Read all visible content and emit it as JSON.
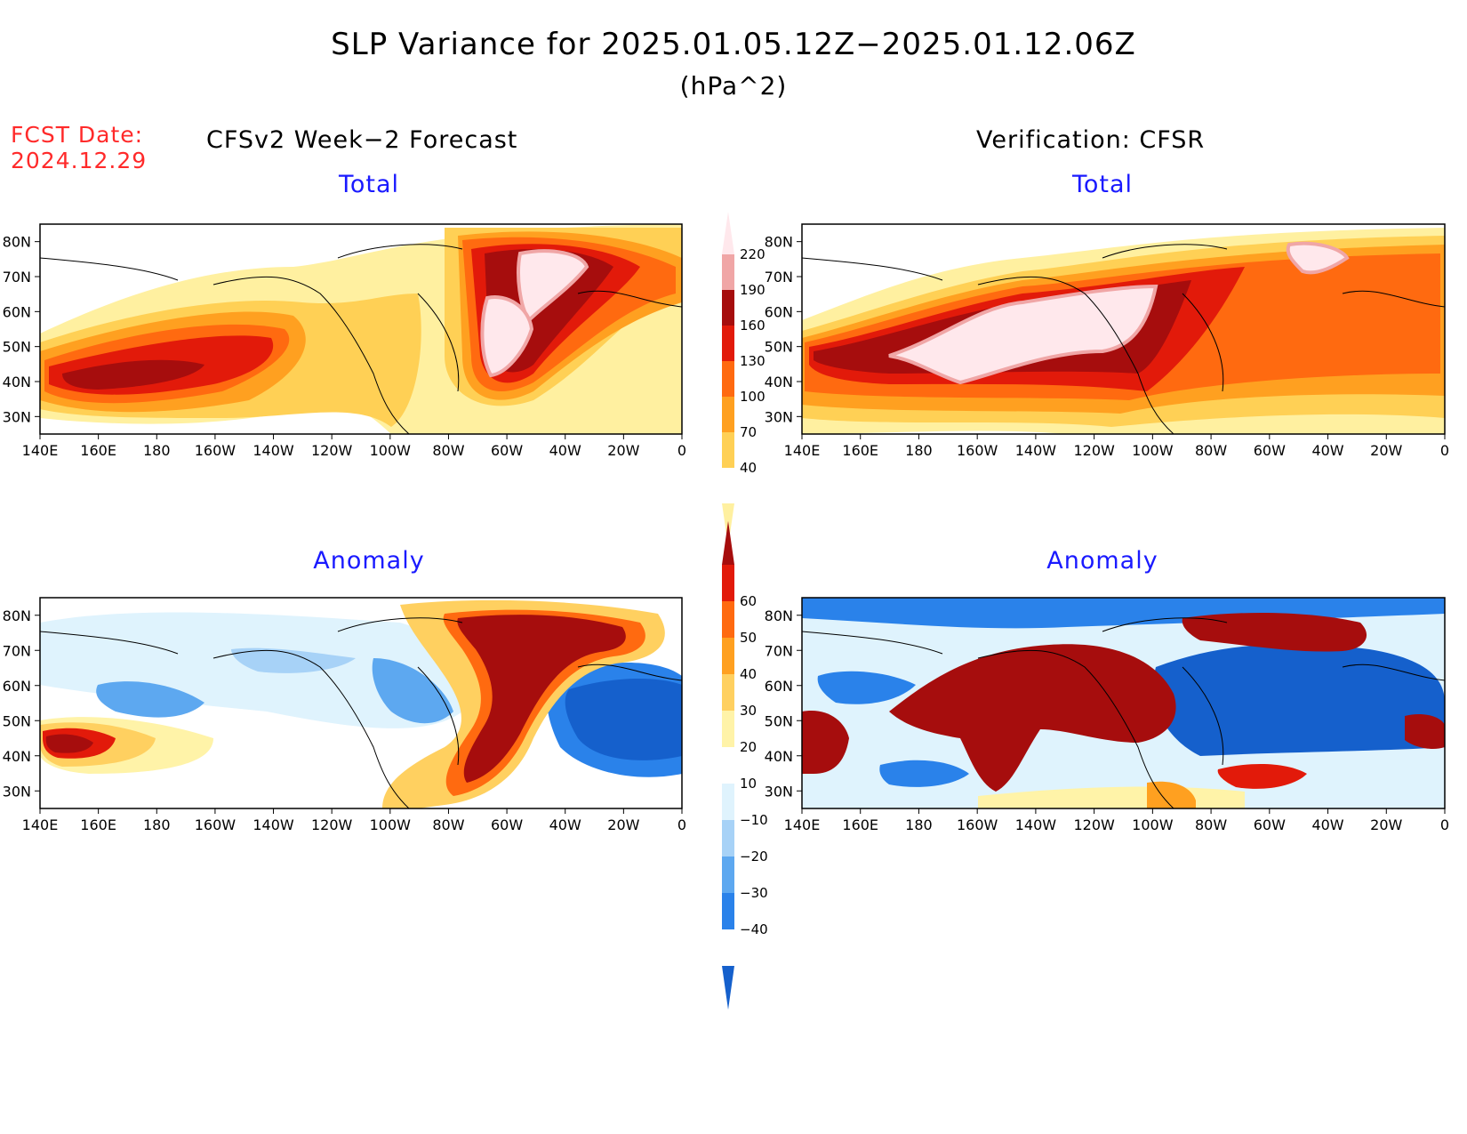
{
  "header": {
    "title": "SLP Variance for 2025.01.05.12Z−2025.01.12.06Z",
    "units": "(hPa^2)",
    "fcst_label": "FCST Date:",
    "fcst_date": "2024.12.29",
    "left_column": "CFSv2 Week−2 Forecast",
    "right_column": "Verification: CFSR"
  },
  "panels": {
    "top_left": {
      "title": "Total"
    },
    "top_right": {
      "title": "Total"
    },
    "bottom_left": {
      "title": "Anomaly"
    },
    "bottom_right": {
      "title": "Anomaly"
    }
  },
  "axes": {
    "lat_labels": [
      "80N",
      "70N",
      "60N",
      "50N",
      "40N",
      "30N"
    ],
    "lon_labels": [
      "140E",
      "160E",
      "180",
      "160W",
      "140W",
      "120W",
      "100W",
      "80W",
      "60W",
      "40W",
      "20W",
      "0"
    ]
  },
  "colorbars": {
    "total": {
      "labels": [
        "40",
        "70",
        "100",
        "130",
        "160",
        "190",
        "220"
      ],
      "colors": [
        "#fff0a0",
        "#ffd055",
        "#ffa020",
        "#ff6a10",
        "#e21a0a",
        "#a60d0d",
        "#f0a6a6",
        "#ffe8ec"
      ]
    },
    "anomaly": {
      "labels": [
        "−40",
        "−30",
        "−20",
        "−10",
        "10",
        "20",
        "30",
        "40",
        "50",
        "60"
      ],
      "colors": [
        "#1560cc",
        "#2a82ea",
        "#5da8f0",
        "#a7d2f7",
        "#dff3fd",
        "#ffffff",
        "#fff3a8",
        "#ffd060",
        "#ffa020",
        "#ff6a10",
        "#e21a0a",
        "#a60d0d"
      ]
    }
  }
}
